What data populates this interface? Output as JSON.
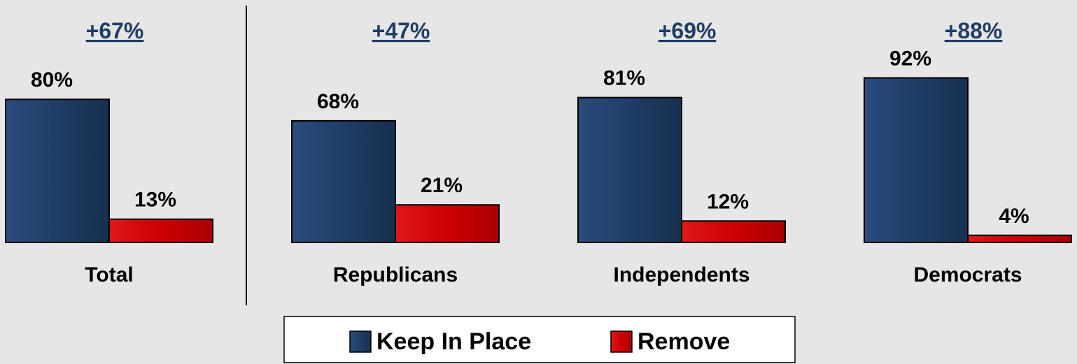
{
  "chart_data": {
    "type": "bar",
    "categories": [
      "Total",
      "Republicans",
      "Independents",
      "Democrats"
    ],
    "series": [
      {
        "name": "Keep In Place",
        "values": [
          80,
          68,
          81,
          92
        ],
        "labels": [
          "80%",
          "68%",
          "81%",
          "92%"
        ],
        "color": "#1f3d66"
      },
      {
        "name": "Remove",
        "values": [
          13,
          21,
          12,
          4
        ],
        "labels": [
          "13%",
          "21%",
          "12%",
          "4%"
        ],
        "color": "#cc0000"
      }
    ],
    "differences": [
      "+67%",
      "+47%",
      "+69%",
      "+88%"
    ],
    "difference_color": "#1f3d66",
    "legend_position": "bottom-center",
    "grid": false
  }
}
